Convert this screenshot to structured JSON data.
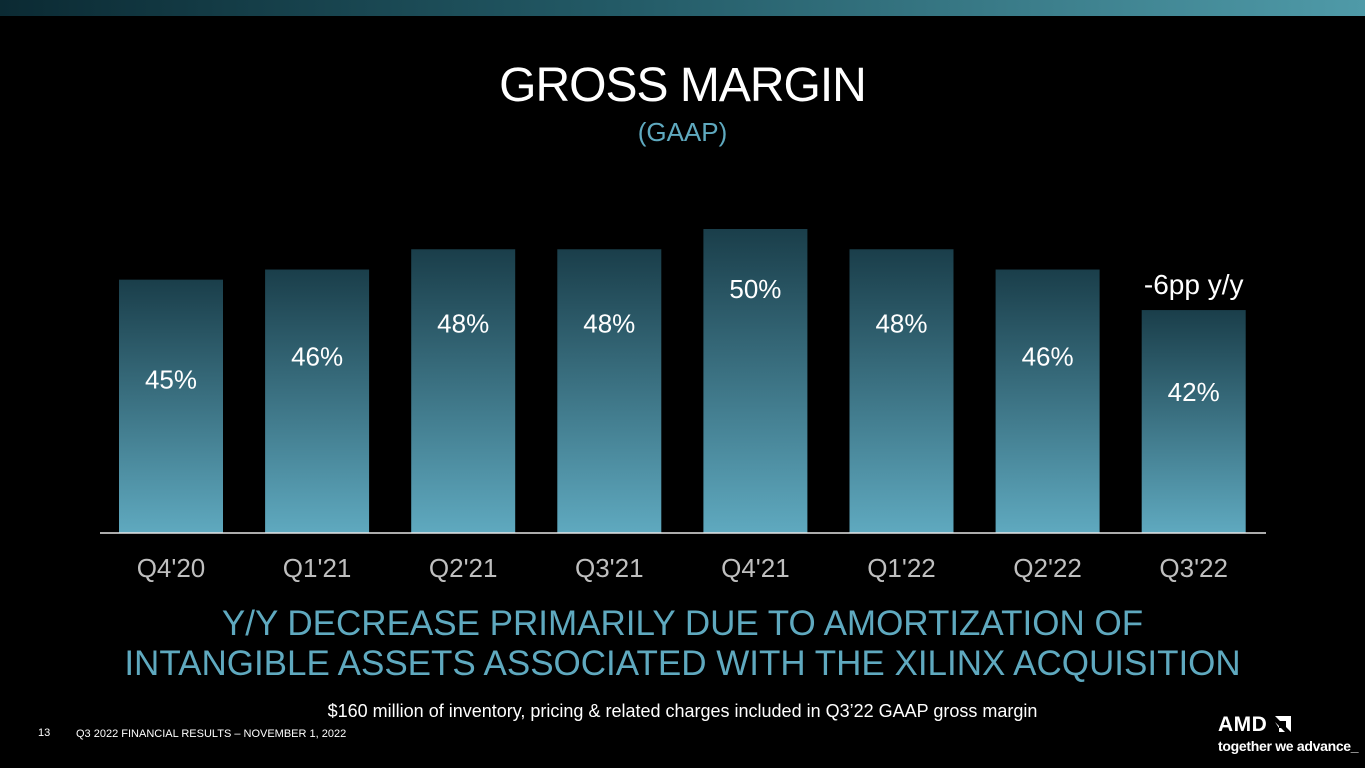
{
  "slide": {
    "title": "GROSS MARGIN",
    "subtitle": "(GAAP)",
    "headline_line1": "Y/Y DECREASE PRIMARILY DUE TO AMORTIZATION OF",
    "headline_line2": "INTANGIBLE ASSETS ASSOCIATED WITH THE XILINX ACQUISITION",
    "note": "$160 million of inventory, pricing & related charges included in Q3’22 GAAP gross margin",
    "page_number": "13",
    "footer": "Q3 2022 FINANCIAL RESULTS – NOVEMBER 1, 2022",
    "logo_text": "AMD",
    "logo_icon": "amd-arrow-icon",
    "tagline": "together we advance_"
  },
  "colors": {
    "accent": "#5fa9bf",
    "bar_top": "#1a3e4a",
    "bar_bottom": "#5fa9bf",
    "background": "#000000"
  },
  "chart_data": {
    "type": "bar",
    "categories": [
      "Q4'20",
      "Q1'21",
      "Q2'21",
      "Q3'21",
      "Q4'21",
      "Q1'22",
      "Q2'22",
      "Q3'22"
    ],
    "values": [
      45,
      46,
      48,
      48,
      50,
      48,
      46,
      42
    ],
    "data_labels": [
      "45%",
      "46%",
      "48%",
      "48%",
      "50%",
      "48%",
      "46%",
      "42%"
    ],
    "annotation": {
      "category": "Q3'22",
      "text": "-6pp y/y"
    },
    "ylim": [
      20,
      50
    ],
    "grid": false,
    "legend": "none"
  }
}
